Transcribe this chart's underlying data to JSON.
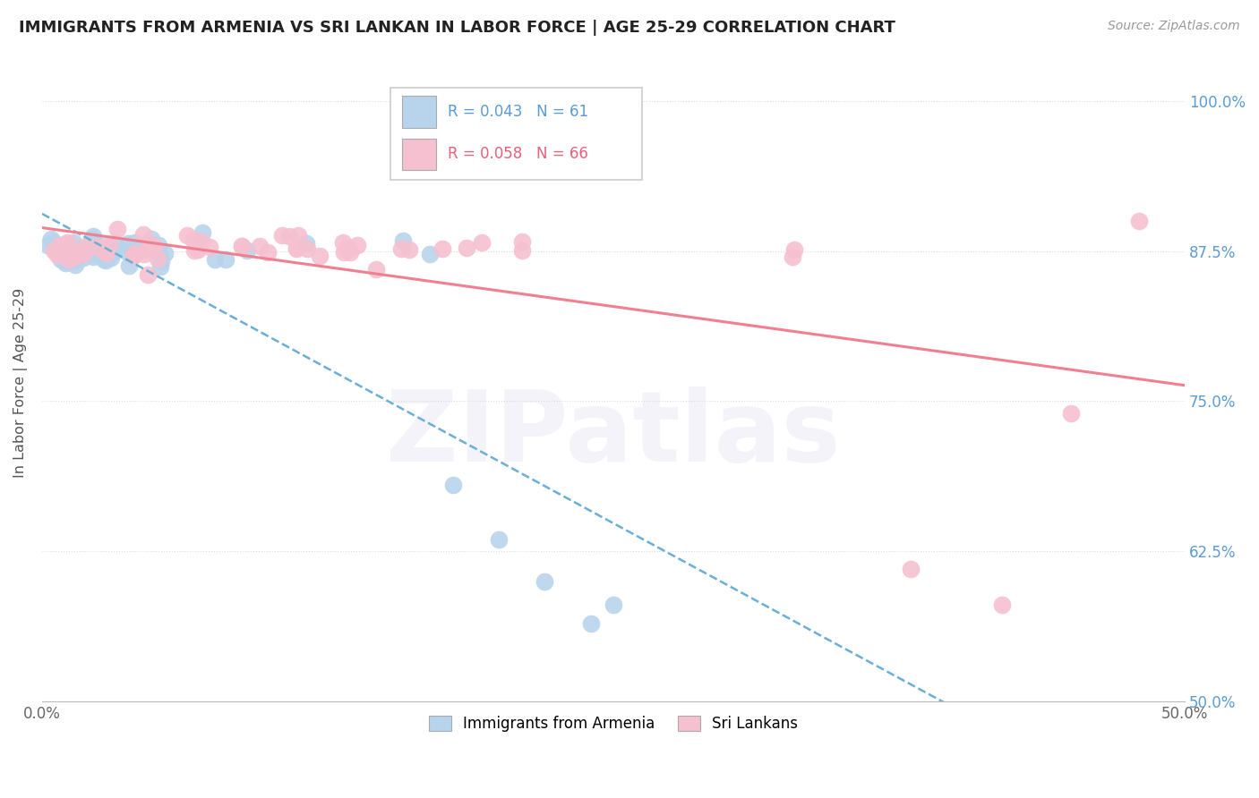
{
  "title": "IMMIGRANTS FROM ARMENIA VS SRI LANKAN IN LABOR FORCE | AGE 25-29 CORRELATION CHART",
  "source_text": "Source: ZipAtlas.com",
  "ylabel_label": "In Labor Force | Age 25-29",
  "legend_label_1": "Immigrants from Armenia",
  "legend_label_2": "Sri Lankans",
  "r1": 0.043,
  "n1": 61,
  "r2": 0.058,
  "n2": 66,
  "color_blue_fill": "#b8d4ec",
  "color_pink_fill": "#f5c0d0",
  "color_blue_line": "#6baed6",
  "color_pink_line": "#f08090",
  "color_blue_text": "#5b9bd5",
  "color_pink_text": "#e8607a",
  "x_min": 0.0,
  "x_max": 0.5,
  "y_min": 0.5,
  "y_max": 1.03,
  "yticks": [
    0.5,
    0.625,
    0.75,
    0.875,
    1.0
  ],
  "ytick_labels": [
    "50.0%",
    "62.5%",
    "75.0%",
    "87.5%",
    "100.0%"
  ],
  "xtick_labels": [
    "0.0%",
    "50.0%"
  ],
  "watermark_text": "ZIPatlas",
  "background_color": "#ffffff"
}
